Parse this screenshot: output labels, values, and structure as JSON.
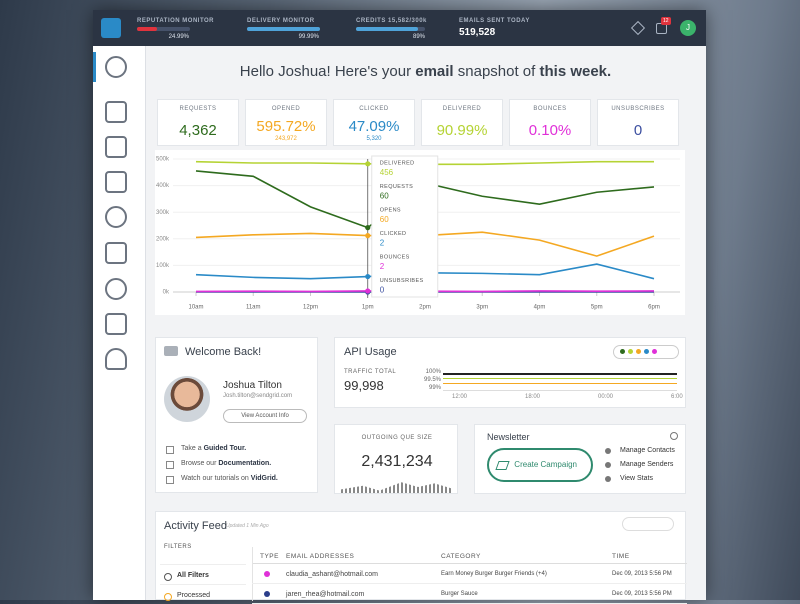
{
  "topbar": {
    "reputation": {
      "label": "REPUTATION MONITOR",
      "value": "24.99%"
    },
    "delivery": {
      "label": "DELIVERY MONITOR",
      "value": "99.99%"
    },
    "credits": {
      "label": "CREDITS 15,582/300k",
      "value": "89%"
    },
    "emails": {
      "label": "EMAILS SENT TODAY",
      "value": "519,528"
    },
    "badge": "12",
    "avatar": "J"
  },
  "greeting": {
    "a": "Hello Joshua! Here's your ",
    "b": "email",
    "c": " snapshot of ",
    "d": "this week."
  },
  "stats": [
    {
      "label": "REQUESTS",
      "value": "4,362",
      "color": "#2e6b1d"
    },
    {
      "label": "OPENED",
      "value": "595.72%",
      "sub": "243,972",
      "color": "#f4a822"
    },
    {
      "label": "CLICKED",
      "value": "47.09%",
      "sub": "5,320",
      "color": "#2a8ac7"
    },
    {
      "label": "DELIVERED",
      "value": "90.99%",
      "color": "#b5d334"
    },
    {
      "label": "BOUNCES",
      "value": "0.10%",
      "color": "#e030d8"
    },
    {
      "label": "UNSUBSCRIBES",
      "value": "0",
      "color": "#3c4fa0"
    }
  ],
  "chart_data": {
    "type": "line",
    "categories": [
      "10am",
      "11am",
      "12pm",
      "1pm",
      "2pm",
      "3pm",
      "4pm",
      "5pm",
      "6pm"
    ],
    "series": [
      {
        "name": "UNSUBSRIBES",
        "color": "#3c4fa0",
        "values": [
          0,
          0,
          0,
          0,
          0,
          0,
          0,
          0,
          0
        ]
      },
      {
        "name": "BOUNCES",
        "color": "#e030d8",
        "values": [
          2000,
          3000,
          2000,
          4000,
          3000,
          2000,
          4000,
          3000,
          4000
        ]
      },
      {
        "name": "CLICKED",
        "color": "#2a8ac7",
        "values": [
          65000,
          55000,
          50000,
          58000,
          72000,
          70000,
          65000,
          105000,
          50000
        ]
      },
      {
        "name": "OPENS",
        "color": "#f4a822",
        "values": [
          205000,
          215000,
          220000,
          212000,
          212000,
          225000,
          195000,
          135000,
          210000
        ]
      },
      {
        "name": "REQUESTS",
        "color": "#2e6b1d",
        "values": [
          455000,
          435000,
          320000,
          242000,
          410000,
          360000,
          330000,
          375000,
          395000
        ]
      },
      {
        "name": "DELIVERED",
        "color": "#b5d334",
        "values": [
          490000,
          485000,
          485000,
          482000,
          480000,
          480000,
          485000,
          490000,
          490000
        ]
      }
    ],
    "tooltip_values": [
      0,
      2,
      2,
      60,
      60,
      456
    ],
    "ylim": [
      0,
      500000
    ],
    "yticks": [
      {
        "value": 0,
        "label": "0k"
      },
      {
        "value": 100000,
        "label": "100k"
      },
      {
        "value": 200000,
        "label": "200k"
      },
      {
        "value": 300000,
        "label": "300k"
      },
      {
        "value": 400000,
        "label": "400k"
      },
      {
        "value": 500000,
        "label": "500k"
      }
    ],
    "grid": true
  },
  "welcome": {
    "title": "Welcome Back!",
    "name": "Joshua Tilton",
    "email": "Josh.tilton@sendgrid.com",
    "button": "View Account Info",
    "links": [
      [
        "Take a ",
        "Guided Tour."
      ],
      [
        "Browse our ",
        "Documentation."
      ],
      [
        "Watch our tutorials on ",
        "VidGrid."
      ]
    ]
  },
  "api": {
    "title": "API Usage",
    "traffic_label": "TRAFFIC TOTAL",
    "traffic": "99,998",
    "ylabels": [
      "100%",
      "99.5%",
      "99%"
    ],
    "xlabels": [
      "12:00",
      "18:00",
      "00:00",
      "6:00"
    ]
  },
  "queue": {
    "label": "OUTGOING QUE SIZE",
    "value": "2,431,234"
  },
  "newsletter": {
    "title": "Newsletter",
    "button": "Create Campaign",
    "links": [
      "Manage Contacts",
      "Manage Senders",
      "View Stats"
    ]
  },
  "activity": {
    "title": "Activity Feed",
    "updated": "Updated 1 Min Ago",
    "filters": "FILTERS",
    "filter_items": [
      "All Filters",
      "Processed"
    ],
    "headers": [
      "TYPE",
      "EMAIL ADDRESSES",
      "CATEGORY",
      "TIME"
    ],
    "rows": [
      [
        "claudia_ashant@hotmail.com",
        "Earn Money Burger Burger Friends (+4)",
        "Dec 09, 2013 5:56 PM"
      ],
      [
        "jaren_rhea@hotmail.com",
        "Burger Sauce",
        "Dec 09, 2013 5:56 PM"
      ]
    ]
  }
}
